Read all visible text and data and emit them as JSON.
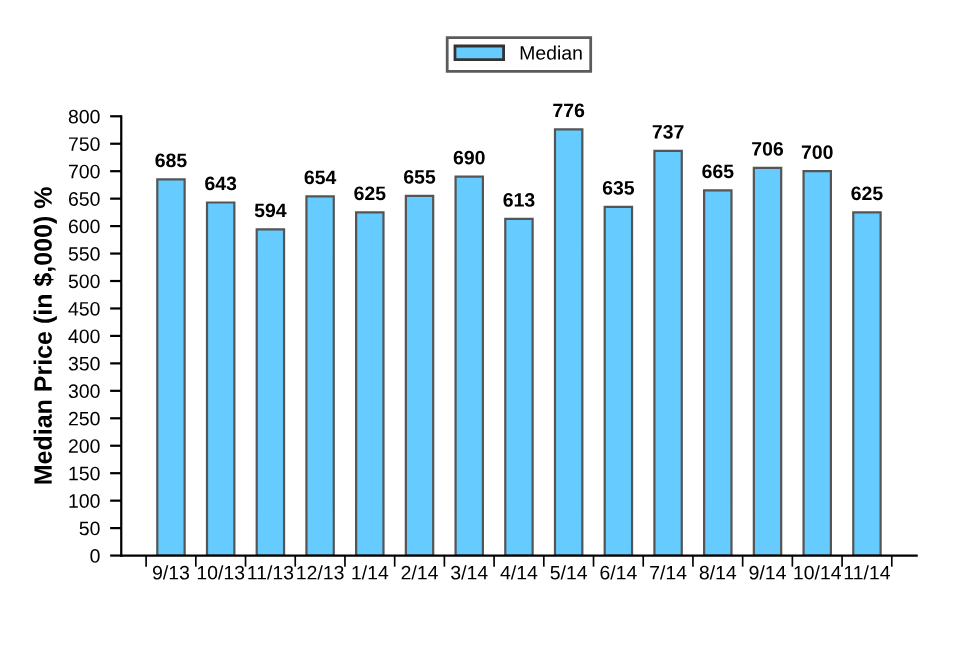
{
  "chart_data": {
    "type": "bar",
    "ylabel": "Median Price (in $,000) %",
    "categories": [
      "9/13",
      "10/13",
      "11/13",
      "12/13",
      "1/14",
      "2/14",
      "3/14",
      "4/14",
      "5/14",
      "6/14",
      "7/14",
      "8/14",
      "9/14",
      "10/14",
      "11/14"
    ],
    "series": [
      {
        "name": "Median",
        "color": "#66ccff",
        "values": [
          685,
          643,
          594,
          654,
          625,
          655,
          690,
          613,
          776,
          635,
          737,
          665,
          706,
          700,
          625
        ]
      }
    ],
    "ylim": [
      0,
      800
    ],
    "yticks": [
      0,
      50,
      100,
      150,
      200,
      250,
      300,
      350,
      400,
      450,
      500,
      550,
      600,
      650,
      700,
      750,
      800
    ],
    "data_labels": true,
    "legend": "top",
    "grid": false
  }
}
